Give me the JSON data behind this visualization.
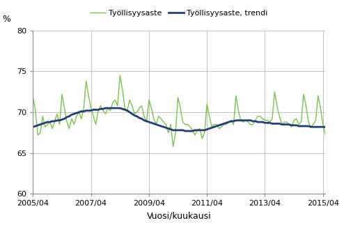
{
  "title": "",
  "ylabel": "%",
  "xlabel": "Vuosi/kuukausi",
  "ylim": [
    60,
    80
  ],
  "yticks": [
    60,
    65,
    70,
    75,
    80
  ],
  "xtick_labels": [
    "2005/04",
    "2007/04",
    "2009/04",
    "2011/04",
    "2013/04",
    "2015/04"
  ],
  "legend_labels": [
    "Työllisyysaste",
    "Työllisyysaste, trendi"
  ],
  "line_color_main": "#7dc243",
  "line_color_trend": "#1f3d7a",
  "background_color": "#ffffff",
  "grid_color": "#aaaaaa",
  "tyollisyysaste": [
    71.8,
    70.2,
    67.2,
    67.5,
    69.5,
    68.2,
    68.5,
    68.8,
    68.0,
    69.0,
    69.8,
    68.5,
    72.2,
    70.5,
    68.8,
    68.0,
    69.2,
    68.5,
    69.5,
    70.0,
    69.2,
    70.5,
    73.8,
    72.0,
    70.5,
    69.5,
    68.5,
    70.2,
    70.8,
    70.2,
    69.8,
    70.5,
    70.2,
    71.2,
    71.5,
    70.8,
    74.5,
    72.8,
    70.5,
    70.2,
    71.5,
    70.8,
    69.8,
    70.0,
    70.5,
    70.8,
    69.5,
    68.8,
    71.5,
    70.5,
    69.2,
    68.5,
    69.5,
    69.2,
    68.8,
    68.5,
    67.5,
    68.5,
    65.8,
    67.5,
    71.8,
    70.5,
    68.8,
    68.5,
    68.5,
    68.2,
    67.8,
    67.2,
    67.8,
    68.0,
    66.8,
    67.5,
    71.0,
    69.5,
    68.2,
    68.5,
    68.5,
    68.0,
    68.2,
    68.5,
    68.5,
    68.8,
    69.0,
    68.5,
    72.0,
    70.2,
    69.0,
    68.8,
    69.0,
    68.8,
    68.5,
    68.5,
    69.0,
    69.5,
    69.5,
    69.2,
    69.0,
    69.0,
    68.8,
    69.2,
    72.5,
    70.8,
    69.5,
    68.5,
    68.8,
    68.8,
    68.5,
    68.2,
    69.0,
    69.2,
    68.5,
    68.8,
    72.2,
    70.8,
    68.8,
    68.2,
    68.5,
    69.0,
    72.0,
    70.5,
    68.5,
    67.2
  ],
  "trendi": [
    68.2,
    68.3,
    68.4,
    68.5,
    68.6,
    68.7,
    68.8,
    68.8,
    68.9,
    68.9,
    69.0,
    69.0,
    69.1,
    69.2,
    69.4,
    69.5,
    69.7,
    69.8,
    69.9,
    70.0,
    70.1,
    70.1,
    70.2,
    70.2,
    70.2,
    70.3,
    70.3,
    70.3,
    70.4,
    70.4,
    70.5,
    70.5,
    70.5,
    70.5,
    70.5,
    70.5,
    70.5,
    70.4,
    70.3,
    70.2,
    70.0,
    69.8,
    69.6,
    69.5,
    69.3,
    69.2,
    69.0,
    68.9,
    68.8,
    68.7,
    68.6,
    68.5,
    68.4,
    68.3,
    68.2,
    68.1,
    68.0,
    67.9,
    67.8,
    67.8,
    67.8,
    67.8,
    67.8,
    67.7,
    67.7,
    67.7,
    67.7,
    67.8,
    67.8,
    67.8,
    67.8,
    67.8,
    67.9,
    68.0,
    68.1,
    68.2,
    68.3,
    68.4,
    68.5,
    68.6,
    68.7,
    68.8,
    68.9,
    68.9,
    69.0,
    69.0,
    69.0,
    69.0,
    69.0,
    69.0,
    69.0,
    68.9,
    68.9,
    68.8,
    68.8,
    68.8,
    68.7,
    68.7,
    68.7,
    68.6,
    68.6,
    68.6,
    68.6,
    68.5,
    68.5,
    68.5,
    68.5,
    68.4,
    68.4,
    68.4,
    68.3,
    68.3,
    68.3,
    68.3,
    68.3,
    68.2,
    68.2,
    68.2,
    68.2,
    68.2,
    68.2,
    68.2
  ]
}
